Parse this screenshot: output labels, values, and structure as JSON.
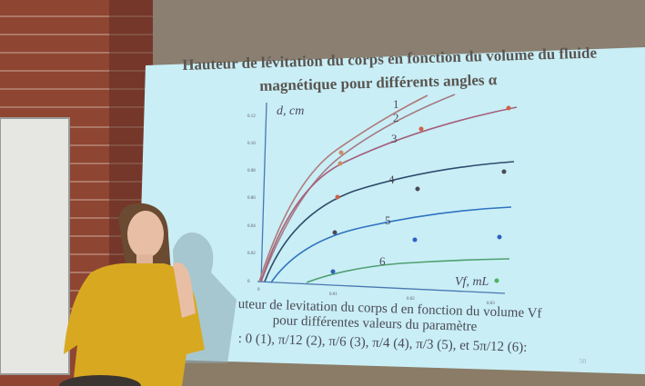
{
  "slide": {
    "title_line1": "Hauteur de lévitation du corps en fonction du volume du fluide",
    "title_line2": "magnétique pour différents angles α",
    "y_axis_label": "d, cm",
    "x_axis_label": "Vf, mL",
    "y_ticks": [
      "0",
      "0.02",
      "0.04",
      "0.06",
      "0.08",
      "0.10",
      "0.12"
    ],
    "x_ticks": [
      "0",
      "0.01",
      "0.02",
      "0.03"
    ],
    "curve_labels": [
      "1",
      "2",
      "3",
      "4",
      "5",
      "6"
    ],
    "caption_line1": "uteur de levitation du corps d en fonction du volume Vf",
    "caption_line2": "pour différentes valeurs du paramètre",
    "caption_line3": ": 0 (1), π/12 (2), π/6 (3), π/4 (4), π/3 (5), et 5π/12 (6):",
    "page_number": "50"
  },
  "colors": {
    "slide_bg": "#c9eef6",
    "curve_1": "#b07a7a",
    "curve_2": "#a57a85",
    "curve_3": "#a5607a",
    "curve_4": "#2d4b6a",
    "curve_5": "#2f73c0",
    "curve_6": "#4fa070",
    "dress": "#d8a820",
    "brick": "#9a4a35"
  }
}
